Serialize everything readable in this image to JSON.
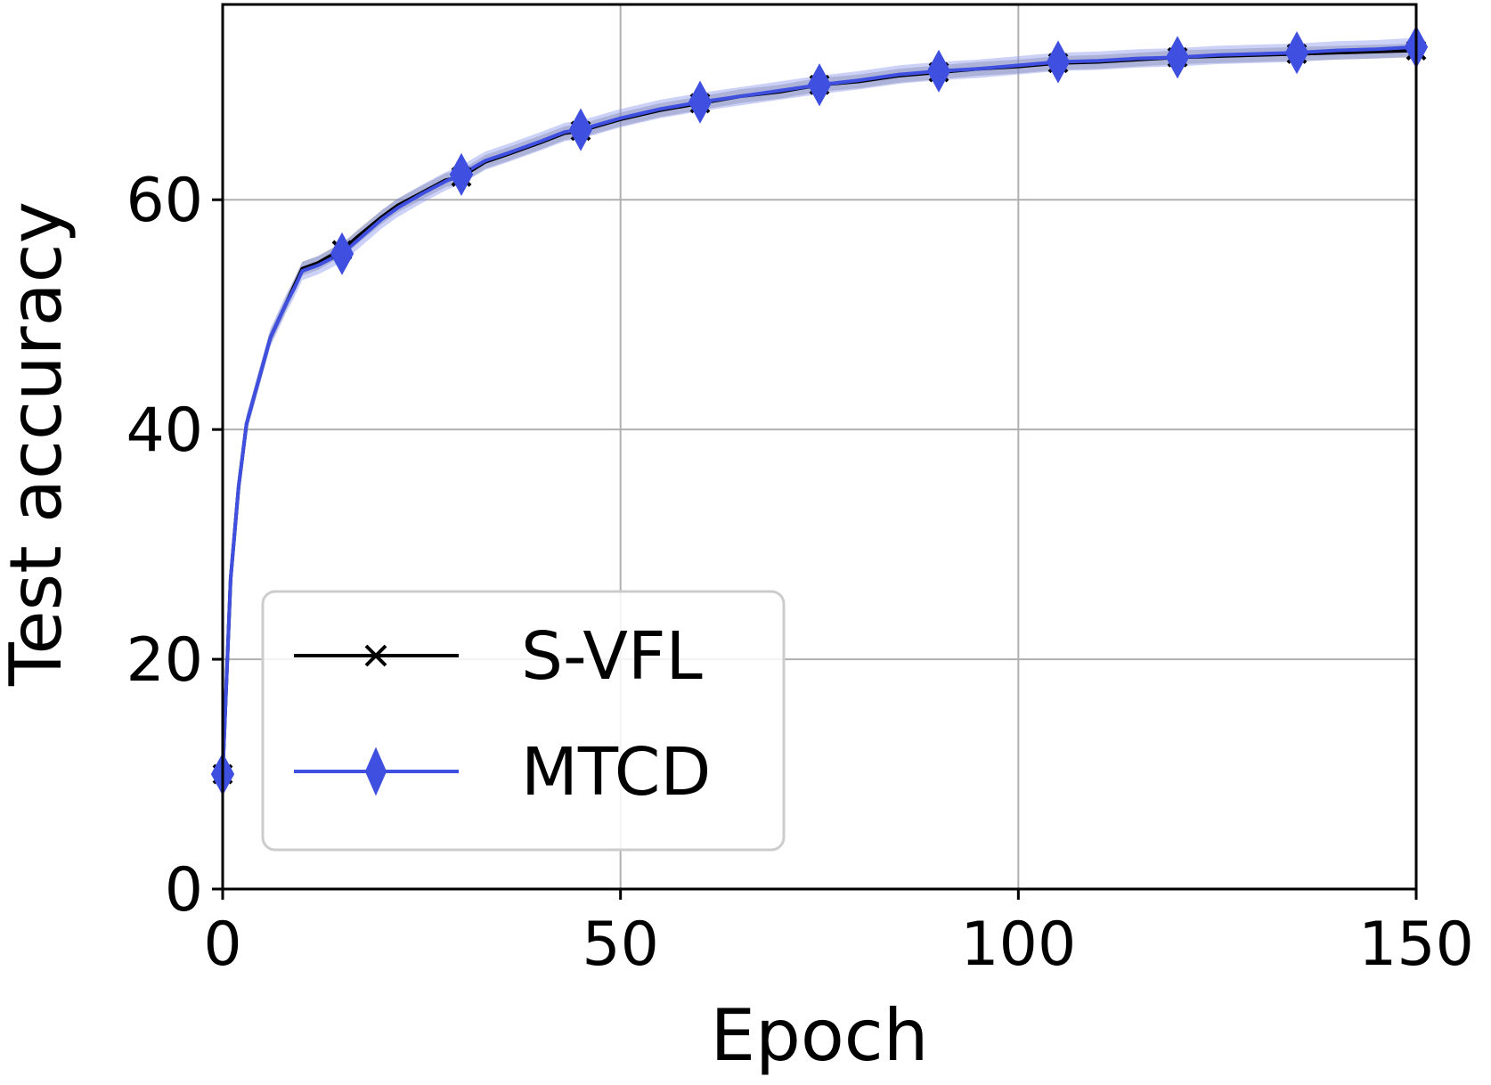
{
  "chart_data": {
    "type": "line",
    "title": "",
    "xlabel": "Epoch",
    "ylabel": "Test accuracy",
    "xlim": [
      0,
      150
    ],
    "ylim": [
      0,
      77
    ],
    "xticks": [
      0,
      50,
      100,
      150
    ],
    "yticks": [
      0,
      20,
      40,
      60
    ],
    "grid": true,
    "legend_position": "lower-left",
    "series": [
      {
        "name": "S-VFL",
        "color": "#000000",
        "band_color": "#808080",
        "marker": "x",
        "marker_every": 15,
        "x": [
          0,
          1,
          2,
          3,
          4,
          5,
          6,
          7,
          8,
          9,
          10,
          12,
          14,
          15,
          17,
          20,
          22,
          25,
          28,
          30,
          33,
          36,
          40,
          43,
          45,
          48,
          50,
          55,
          60,
          65,
          70,
          75,
          80,
          85,
          90,
          95,
          100,
          105,
          110,
          115,
          120,
          125,
          130,
          135,
          140,
          145,
          150
        ],
        "y": [
          10,
          27,
          35,
          40.5,
          43,
          45.5,
          48,
          49.5,
          51,
          52.5,
          54,
          54.5,
          55.3,
          55.6,
          56.8,
          58.5,
          59.5,
          60.6,
          61.7,
          62.0,
          63.3,
          64.0,
          65.0,
          65.8,
          66.0,
          66.6,
          67.0,
          67.8,
          68.4,
          69.0,
          69.4,
          70.0,
          70.3,
          70.8,
          71.1,
          71.4,
          71.6,
          71.9,
          72.0,
          72.2,
          72.4,
          72.5,
          72.6,
          72.7,
          72.8,
          72.9,
          73.0
        ],
        "band_width": 0.6
      },
      {
        "name": "MTCD",
        "color": "#3f4fe0",
        "band_color": "#8f9af0",
        "marker": "diamond",
        "marker_every": 15,
        "x": [
          0,
          1,
          2,
          3,
          4,
          5,
          6,
          7,
          8,
          9,
          10,
          12,
          14,
          15,
          17,
          20,
          22,
          25,
          28,
          30,
          33,
          36,
          40,
          43,
          45,
          48,
          50,
          55,
          60,
          65,
          70,
          75,
          80,
          85,
          90,
          95,
          100,
          105,
          110,
          115,
          120,
          125,
          130,
          135,
          140,
          145,
          150
        ],
        "y": [
          10,
          27,
          35,
          40.5,
          43,
          45.5,
          48,
          49.5,
          51,
          52.3,
          53.8,
          54.3,
          55.0,
          55.3,
          56.5,
          58.3,
          59.3,
          60.5,
          61.6,
          62.2,
          63.4,
          64.1,
          65.1,
          65.9,
          66.1,
          66.7,
          67.1,
          67.9,
          68.5,
          69.0,
          69.5,
          70.0,
          70.4,
          70.9,
          71.2,
          71.4,
          71.7,
          72.0,
          72.1,
          72.3,
          72.4,
          72.6,
          72.7,
          72.8,
          73.0,
          73.1,
          73.3
        ],
        "band_width": 0.8
      }
    ],
    "legend": {
      "entries": [
        "S-VFL",
        "MTCD"
      ]
    }
  }
}
